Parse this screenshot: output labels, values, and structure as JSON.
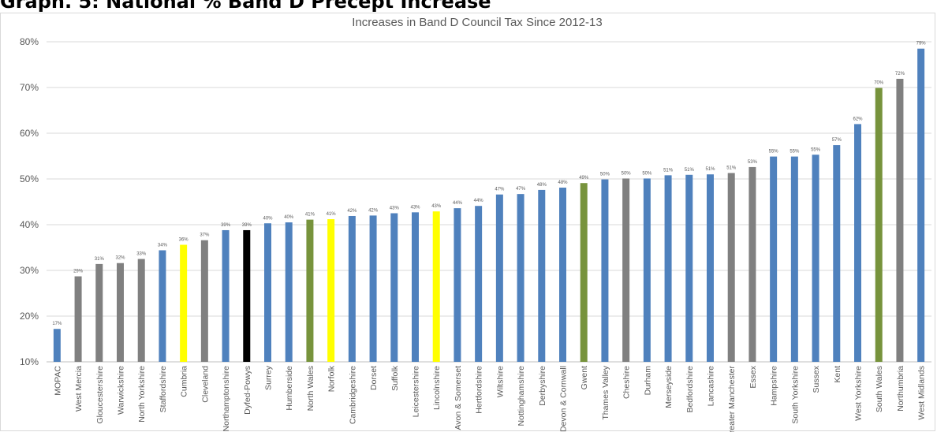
{
  "page": {
    "heading": "Graph. 5: National % Band D Precept Increase"
  },
  "chart_data": {
    "type": "bar",
    "title": "Increases in Band D Council Tax Since 2012-13",
    "xlabel": "",
    "ylabel": "",
    "ylim": [
      10,
      80
    ],
    "yticks": [
      "10%",
      "20%",
      "30%",
      "40%",
      "50%",
      "60%",
      "70%",
      "80%"
    ],
    "grid": true,
    "legend": "none",
    "colors": {
      "blue": "#4f81bd",
      "grey": "#808080",
      "green": "#77933c",
      "yellow": "#ffff00",
      "black": "#000000",
      "grid": "#d9d9d9",
      "text": "#595959"
    },
    "categories": [
      "MOPAC",
      "West Mercia",
      "Gloucestershire",
      "Warwickshire",
      "North Yorkshire",
      "Staffordshire",
      "Cumbria",
      "Cleveland",
      "Northamptonshire",
      "Dyfed-Powys",
      "Surrey",
      "Humberside",
      "North Wales",
      "Norfolk",
      "Cambridgeshire",
      "Dorset",
      "Suffolk",
      "Leicestershire",
      "Lincolnshire",
      "Avon & Somerset",
      "Hertfordshire",
      "Wiltshire",
      "Nottinghamshire",
      "Derbyshire",
      "Devon & Cornwall",
      "Gwent",
      "Thames Valley",
      "Cheshire",
      "Durham",
      "Merseyside",
      "Bedfordshire",
      "Lancashire",
      "Greater Manchester",
      "Essex",
      "Hampshire",
      "South Yorkshire",
      "Sussex",
      "Kent",
      "West Yorkshire",
      "South Wales",
      "Northumbria",
      "West Midlands"
    ],
    "values": [
      17.2,
      28.7,
      31.4,
      31.6,
      32.5,
      34.4,
      35.6,
      36.6,
      38.8,
      38.8,
      40.3,
      40.5,
      41.1,
      41.2,
      41.9,
      42.0,
      42.5,
      42.7,
      42.9,
      43.6,
      44.1,
      46.6,
      46.7,
      47.6,
      48.1,
      49.1,
      49.9,
      50.1,
      50.1,
      50.8,
      50.9,
      51.0,
      51.3,
      52.6,
      54.9,
      54.9,
      55.3,
      57.4,
      62.0,
      69.9,
      71.9,
      78.5
    ],
    "value_labels": [
      "17%",
      "29%",
      "31%",
      "32%",
      "33%",
      "34%",
      "36%",
      "37%",
      "39%",
      "39%",
      "40%",
      "40%",
      "41%",
      "41%",
      "42%",
      "42%",
      "43%",
      "43%",
      "43%",
      "44%",
      "44%",
      "47%",
      "47%",
      "48%",
      "48%",
      "49%",
      "50%",
      "50%",
      "50%",
      "51%",
      "51%",
      "51%",
      "51%",
      "53%",
      "55%",
      "55%",
      "55%",
      "57%",
      "62%",
      "70%",
      "72%",
      "79%"
    ],
    "bar_colors": [
      "blue",
      "grey",
      "grey",
      "grey",
      "grey",
      "blue",
      "yellow",
      "grey",
      "blue",
      "black",
      "blue",
      "blue",
      "green",
      "yellow",
      "blue",
      "blue",
      "blue",
      "blue",
      "yellow",
      "blue",
      "blue",
      "blue",
      "blue",
      "blue",
      "blue",
      "green",
      "blue",
      "grey",
      "blue",
      "blue",
      "blue",
      "blue",
      "grey",
      "grey",
      "blue",
      "blue",
      "blue",
      "blue",
      "blue",
      "green",
      "grey",
      "blue"
    ]
  }
}
